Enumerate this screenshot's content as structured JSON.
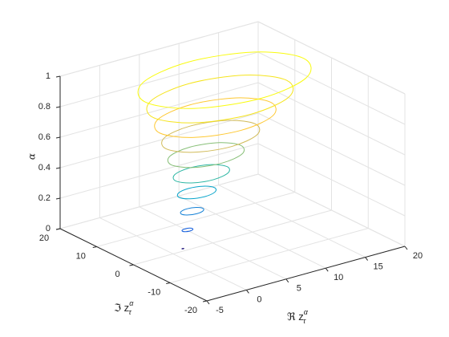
{
  "chart_data": {
    "type": "line3d",
    "xlabel": {
      "base": "ℜ z",
      "sub": "τ",
      "sup": "α"
    },
    "ylabel": {
      "base": "ℑ z",
      "sub": "τ",
      "sup": "α"
    },
    "zlabel": "α",
    "xlim": [
      -5,
      20
    ],
    "xticks": [
      -5,
      0,
      5,
      10,
      15,
      20
    ],
    "ylim": [
      -20,
      20
    ],
    "yticks": [
      -20,
      -10,
      0,
      10,
      20
    ],
    "zlim": [
      0,
      1
    ],
    "zticks": [
      0,
      0.2,
      0.4,
      0.6,
      0.8,
      1
    ],
    "grid": true,
    "series": [
      {
        "color": "#352a87",
        "x": [
          0.52,
          0.49,
          0.4,
          0.32,
          0.28,
          0.32,
          0.4,
          0.49
        ],
        "y": [
          -1.8,
          -1.72,
          -1.68,
          -1.72,
          -1.8,
          -1.88,
          -1.92,
          -1.88
        ],
        "z": [
          0.05,
          0.05,
          0.05,
          0.05,
          0.05,
          0.05,
          0.05,
          0.05
        ]
      },
      {
        "color": "#0f5cdd",
        "x": [
          1.97,
          1.79,
          1.34,
          0.89,
          0.71,
          0.89,
          1.34,
          1.79
        ],
        "y": [
          -1.02,
          -0.57,
          -0.39,
          -0.57,
          -1.02,
          -1.47,
          -1.65,
          -1.47
        ],
        "z": [
          0.15,
          0.15,
          0.15,
          0.15,
          0.15,
          0.15,
          0.15,
          0.15
        ]
      },
      {
        "color": "#1481d6",
        "x": [
          3.64,
          3.24,
          2.29,
          1.34,
          0.94,
          1.34,
          2.29,
          3.24
        ],
        "y": [
          -0.24,
          0.71,
          1.11,
          0.71,
          -0.24,
          -1.19,
          -1.59,
          -1.19
        ],
        "z": [
          0.25,
          0.25,
          0.25,
          0.25,
          0.25,
          0.25,
          0.25,
          0.25
        ]
      },
      {
        "color": "#06a4ca",
        "x": [
          5.47,
          4.81,
          3.23,
          1.65,
          0.99,
          1.65,
          3.23,
          4.81
        ],
        "y": [
          0.53,
          2.11,
          2.77,
          2.11,
          0.53,
          -1.05,
          -1.71,
          -1.05
        ],
        "z": [
          0.35,
          0.35,
          0.35,
          0.35,
          0.35,
          0.35,
          0.35,
          0.35
        ]
      },
      {
        "color": "#2eb7a4",
        "x": [
          7.44,
          6.48,
          4.18,
          1.88,
          0.92,
          1.88,
          4.18,
          6.48
        ],
        "y": [
          1.31,
          3.61,
          4.57,
          3.61,
          1.31,
          -0.99,
          -1.95,
          -0.99
        ],
        "z": [
          0.45,
          0.45,
          0.45,
          0.45,
          0.45,
          0.45,
          0.45,
          0.45
        ]
      },
      {
        "color": "#87bf77",
        "x": [
          9.53,
          8.24,
          5.12,
          2.0,
          0.71,
          2.0,
          5.12,
          8.24
        ],
        "y": [
          2.09,
          5.21,
          6.5,
          5.21,
          2.09,
          -1.03,
          -2.32,
          -1.03
        ],
        "z": [
          0.55,
          0.55,
          0.55,
          0.55,
          0.55,
          0.55,
          0.55,
          0.55
        ]
      },
      {
        "color": "#d1bb59",
        "x": [
          11.73,
          10.07,
          6.07,
          2.07,
          0.41,
          2.07,
          6.07,
          10.07
        ],
        "y": [
          2.87,
          6.87,
          8.53,
          6.87,
          2.87,
          -1.13,
          -2.79,
          -1.13
        ],
        "z": [
          0.65,
          0.65,
          0.65,
          0.65,
          0.65,
          0.65,
          0.65,
          0.65
        ]
      },
      {
        "color": "#fec832",
        "x": [
          14.03,
          11.97,
          7.01,
          2.05,
          -0.01,
          2.05,
          7.01,
          11.97
        ],
        "y": [
          3.64,
          8.6,
          10.66,
          8.6,
          3.64,
          -1.32,
          -3.38,
          -1.32
        ],
        "z": [
          0.75,
          0.75,
          0.75,
          0.75,
          0.75,
          0.75,
          0.75,
          0.75
        ]
      },
      {
        "color": "#f5e41d",
        "x": [
          16.42,
          13.94,
          7.96,
          1.98,
          -0.5,
          1.98,
          7.96,
          13.94
        ],
        "y": [
          4.42,
          10.4,
          12.88,
          10.4,
          4.42,
          -1.56,
          -4.04,
          -1.56
        ],
        "z": [
          0.85,
          0.85,
          0.85,
          0.85,
          0.85,
          0.85,
          0.85,
          0.85
        ]
      },
      {
        "color": "#f9fb0e",
        "x": [
          18.9,
          15.97,
          8.9,
          1.83,
          -1.1,
          1.83,
          8.9,
          15.97
        ],
        "y": [
          5.2,
          12.27,
          15.2,
          12.27,
          5.2,
          -1.87,
          -4.8,
          -1.87
        ],
        "z": [
          0.95,
          0.95,
          0.95,
          0.95,
          0.95,
          0.95,
          0.95,
          0.95
        ]
      }
    ]
  }
}
